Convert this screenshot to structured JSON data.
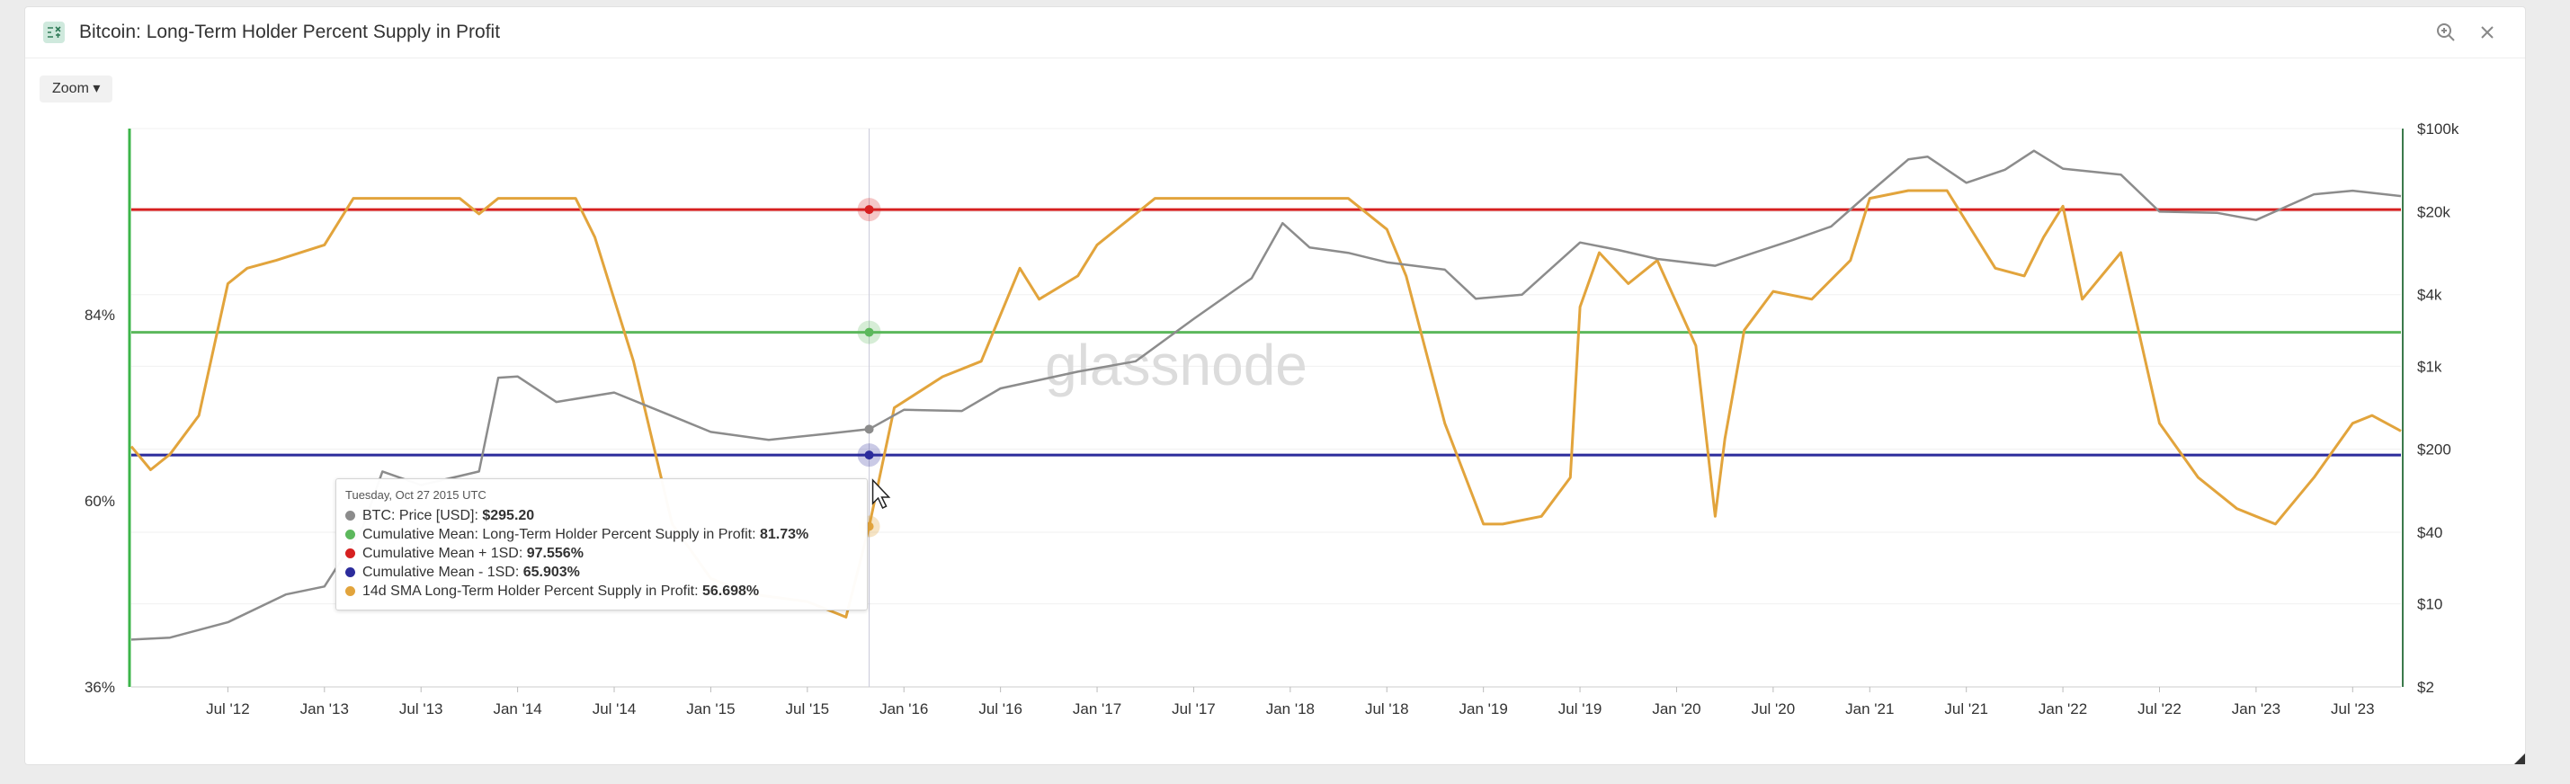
{
  "header": {
    "title": "Bitcoin: Long-Term Holder Percent Supply in Profit",
    "close_label": "×"
  },
  "toolbar": {
    "zoom_label": "Zoom ▾"
  },
  "watermark": "glassnode",
  "colors": {
    "price": "#8c8c8c",
    "mean": "#5cb85c",
    "plus1sd": "#d62020",
    "minus1sd": "#2c2c9c",
    "sma": "#e2a43c",
    "left_axis": "#3cb54a",
    "right_axis": "#3c7a4c"
  },
  "tooltip": {
    "date": "Tuesday, Oct 27 2015 UTC",
    "rows": [
      {
        "label": "BTC: Price [USD]: ",
        "value": "$295.20"
      },
      {
        "label": "Cumulative Mean: Long-Term Holder Percent Supply in Profit: ",
        "value": "81.73%"
      },
      {
        "label": "Cumulative Mean + 1SD: ",
        "value": "97.556%"
      },
      {
        "label": "Cumulative Mean - 1SD: ",
        "value": "65.903%"
      },
      {
        "label": "14d SMA Long-Term Holder Percent Supply in Profit: ",
        "value": "56.698%"
      }
    ]
  },
  "chart_data": {
    "type": "line",
    "x_ticks": [
      "Jul '12",
      "Jan '13",
      "Jul '13",
      "Jan '14",
      "Jul '14",
      "Jan '15",
      "Jul '15",
      "Jan '16",
      "Jul '16",
      "Jan '17",
      "Jul '17",
      "Jan '18",
      "Jul '18",
      "Jan '19",
      "Jul '19",
      "Jan '20",
      "Jul '20",
      "Jan '21",
      "Jul '21",
      "Jan '22",
      "Jul '22",
      "Jan '23",
      "Jul '23"
    ],
    "y_left_ticks": [
      {
        "label": "84%",
        "value": 84
      },
      {
        "label": "60%",
        "value": 60
      },
      {
        "label": "36%",
        "value": 36
      }
    ],
    "y_right_ticks": [
      {
        "label": "$100k",
        "value": 100000
      },
      {
        "label": "$20k",
        "value": 20000
      },
      {
        "label": "$4k",
        "value": 4000
      },
      {
        "label": "$1k",
        "value": 1000
      },
      {
        "label": "$200",
        "value": 200
      },
      {
        "label": "$40",
        "value": 40
      },
      {
        "label": "$10",
        "value": 10
      },
      {
        "label": "$2",
        "value": 2
      }
    ],
    "y_left_range": [
      36,
      108
    ],
    "y_right_scale": "log",
    "y_right_range": [
      2,
      100000
    ],
    "x_range": [
      2012.0,
      2023.75
    ],
    "crosshair_x": 2015.82,
    "series": [
      {
        "key": "sma",
        "name": "14d SMA Long-Term Holder Percent Supply in Profit",
        "axis": "left",
        "x": [
          2012.0,
          2012.1,
          2012.2,
          2012.35,
          2012.5,
          2012.6,
          2012.75,
          2013.0,
          2013.15,
          2013.25,
          2013.5,
          2013.7,
          2013.8,
          2013.9,
          2014.0,
          2014.3,
          2014.4,
          2014.6,
          2014.8,
          2015.0,
          2015.2,
          2015.5,
          2015.7,
          2015.82,
          2015.95,
          2016.2,
          2016.4,
          2016.6,
          2016.7,
          2016.9,
          2017.0,
          2017.3,
          2017.6,
          2017.9,
          2018.3,
          2018.5,
          2018.6,
          2018.8,
          2019.0,
          2019.1,
          2019.3,
          2019.45,
          2019.5,
          2019.6,
          2019.75,
          2019.9,
          2020.1,
          2020.2,
          2020.25,
          2020.35,
          2020.5,
          2020.7,
          2020.9,
          2021.0,
          2021.2,
          2021.4,
          2021.5,
          2021.65,
          2021.8,
          2021.9,
          2022.0,
          2022.1,
          2022.3,
          2022.5,
          2022.7,
          2022.9,
          2023.0,
          2023.1,
          2023.3,
          2023.5,
          2023.6,
          2023.75
        ],
        "y": [
          67,
          64,
          66,
          71,
          88,
          90,
          91,
          93,
          99,
          99,
          99,
          99,
          97,
          99,
          99,
          99,
          94,
          78,
          57,
          50,
          48,
          47,
          45,
          56.698,
          72,
          76,
          78,
          90,
          86,
          89,
          93,
          99,
          99,
          99,
          99,
          95,
          89,
          70,
          57,
          57,
          58,
          63,
          85,
          92,
          88,
          91,
          80,
          58,
          68,
          82,
          87,
          86,
          91,
          99,
          100,
          100,
          96,
          90,
          89,
          94,
          98,
          86,
          92,
          70,
          63,
          59,
          58,
          57,
          63,
          70,
          71,
          69
        ]
      },
      {
        "key": "price",
        "name": "BTC: Price [USD]",
        "axis": "right",
        "x": [
          2012.0,
          2012.2,
          2012.5,
          2012.8,
          2013.0,
          2013.2,
          2013.3,
          2013.5,
          2013.8,
          2013.9,
          2014.0,
          2014.2,
          2014.5,
          2014.8,
          2015.0,
          2015.3,
          2015.6,
          2015.82,
          2016.0,
          2016.3,
          2016.5,
          2016.9,
          2017.2,
          2017.5,
          2017.8,
          2017.96,
          2018.1,
          2018.3,
          2018.5,
          2018.8,
          2018.96,
          2019.2,
          2019.5,
          2019.7,
          2019.9,
          2020.2,
          2020.4,
          2020.6,
          2020.8,
          2021.0,
          2021.2,
          2021.3,
          2021.5,
          2021.7,
          2021.85,
          2022.0,
          2022.3,
          2022.5,
          2022.8,
          2023.0,
          2023.3,
          2023.5,
          2023.75
        ],
        "y": [
          5,
          5.2,
          7,
          12,
          14,
          45,
          130,
          100,
          130,
          800,
          820,
          500,
          600,
          380,
          280,
          240,
          270,
          295.2,
          430,
          420,
          650,
          900,
          1100,
          2500,
          5500,
          16000,
          10000,
          9000,
          7500,
          6500,
          3700,
          4000,
          11000,
          9500,
          8000,
          7000,
          9000,
          11500,
          15000,
          29000,
          55000,
          58000,
          35000,
          45000,
          65000,
          46000,
          41000,
          20000,
          19500,
          17000,
          28000,
          30000,
          27000
        ]
      }
    ],
    "reference_lines": [
      {
        "key": "plus1sd",
        "name": "Cumulative Mean + 1SD",
        "axis": "left",
        "value": 97.556
      },
      {
        "key": "mean",
        "name": "Cumulative Mean: Long-Term Holder Percent Supply in Profit",
        "axis": "left",
        "value": 81.73
      },
      {
        "key": "minus1sd",
        "name": "Cumulative Mean - 1SD",
        "axis": "left",
        "value": 65.903
      }
    ]
  }
}
